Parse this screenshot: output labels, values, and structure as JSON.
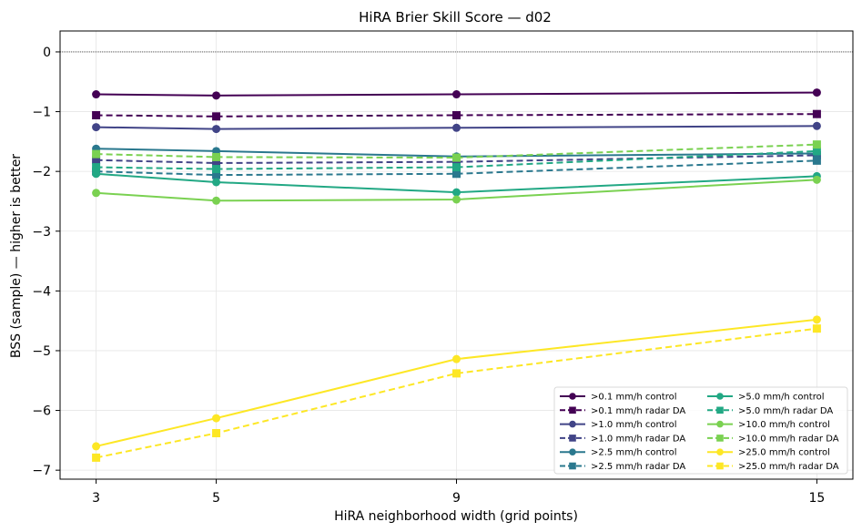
{
  "chart_data": {
    "type": "line",
    "title": "HiRA Brier Skill Score — d02",
    "xlabel": "HiRA neighborhood width (grid points)",
    "ylabel": "BSS (sample) — higher is better",
    "x": [
      3,
      5,
      9,
      15
    ],
    "xlim": [
      2.4,
      15.6
    ],
    "ylim": [
      -7.15,
      0.35
    ],
    "xticks": [
      3,
      5,
      9,
      15
    ],
    "yticks": [
      0,
      -1,
      -2,
      -3,
      -4,
      -5,
      -6,
      -7
    ],
    "ytick_labels": [
      "0",
      "−1",
      "−2",
      "−3",
      "−4",
      "−5",
      "−6",
      "−7"
    ],
    "grid": true,
    "reference_line": 0,
    "legend_position": "lower-right",
    "legend_columns": 2,
    "series": [
      {
        "name": ">0.1 mm/h control",
        "values": [
          -0.71,
          -0.73,
          -0.71,
          -0.68
        ],
        "color": "#440154",
        "dash": false,
        "marker": "circle"
      },
      {
        "name": ">0.1 mm/h radar DA",
        "values": [
          -1.06,
          -1.08,
          -1.06,
          -1.04
        ],
        "color": "#440154",
        "dash": true,
        "marker": "square"
      },
      {
        "name": ">1.0 mm/h control",
        "values": [
          -1.26,
          -1.29,
          -1.27,
          -1.24
        ],
        "color": "#414487",
        "dash": false,
        "marker": "circle"
      },
      {
        "name": ">1.0 mm/h radar DA",
        "values": [
          -1.81,
          -1.86,
          -1.84,
          -1.73
        ],
        "color": "#414487",
        "dash": true,
        "marker": "square"
      },
      {
        "name": ">2.5 mm/h control",
        "values": [
          -1.62,
          -1.66,
          -1.75,
          -1.7
        ],
        "color": "#2a788e",
        "dash": false,
        "marker": "circle"
      },
      {
        "name": ">2.5 mm/h radar DA",
        "values": [
          -2.0,
          -2.06,
          -2.04,
          -1.82
        ],
        "color": "#2a788e",
        "dash": true,
        "marker": "square"
      },
      {
        "name": ">5.0 mm/h control",
        "values": [
          -2.04,
          -2.18,
          -2.35,
          -2.08
        ],
        "color": "#22a884",
        "dash": false,
        "marker": "circle"
      },
      {
        "name": ">5.0 mm/h radar DA",
        "values": [
          -1.93,
          -1.96,
          -1.93,
          -1.66
        ],
        "color": "#22a884",
        "dash": true,
        "marker": "square"
      },
      {
        "name": ">10.0 mm/h control",
        "values": [
          -2.36,
          -2.49,
          -2.47,
          -2.14
        ],
        "color": "#7ad151",
        "dash": false,
        "marker": "circle"
      },
      {
        "name": ">10.0 mm/h radar DA",
        "values": [
          -1.71,
          -1.76,
          -1.77,
          -1.55
        ],
        "color": "#7ad151",
        "dash": true,
        "marker": "square"
      },
      {
        "name": ">25.0 mm/h control",
        "values": [
          -6.6,
          -6.13,
          -5.14,
          -4.48
        ],
        "color": "#fde725",
        "dash": false,
        "marker": "circle"
      },
      {
        "name": ">25.0 mm/h radar DA",
        "values": [
          -6.79,
          -6.38,
          -5.38,
          -4.63
        ],
        "color": "#fde725",
        "dash": true,
        "marker": "square"
      }
    ]
  }
}
